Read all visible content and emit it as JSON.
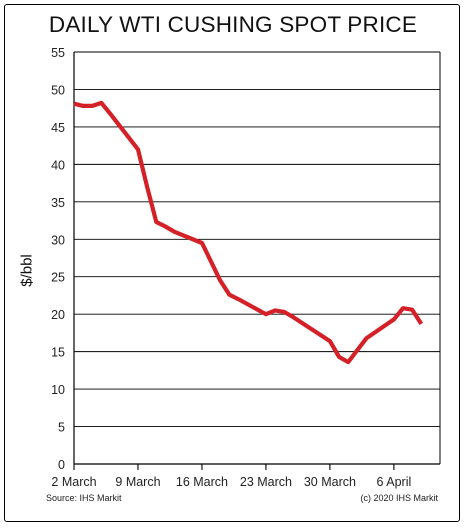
{
  "chart_data": {
    "type": "line",
    "title": "DAILY WTI CUSHING SPOT PRICE",
    "ylabel": "$/bbl",
    "xlabel": "",
    "ylim": [
      0,
      55
    ],
    "y_ticks": [
      0,
      5,
      10,
      15,
      20,
      25,
      30,
      35,
      40,
      45,
      50,
      55
    ],
    "x_ticks": [
      "2 March",
      "9 March",
      "16 March",
      "23 March",
      "30 March",
      "6 April"
    ],
    "grid": "horizontal",
    "line_color": "#d42027",
    "series": [
      {
        "x": [
          "2 March",
          "3 March",
          "4 March",
          "5 March",
          "6 March",
          "9 March",
          "10 March",
          "11 March",
          "12 March",
          "13 March",
          "16 March",
          "17 March",
          "18 March",
          "19 March",
          "20 March",
          "23 March",
          "24 March",
          "25 March",
          "26 March",
          "27 March",
          "30 March",
          "31 March",
          "1 April",
          "2 April",
          "3 April",
          "6 April",
          "7 April",
          "8 April",
          "9 April"
        ],
        "values": [
          48.1,
          47.8,
          47.8,
          48.2,
          46.7,
          42.0,
          37.0,
          32.3,
          31.7,
          31.0,
          29.5,
          27.0,
          24.5,
          22.6,
          22.0,
          20.0,
          20.5,
          20.3,
          19.6,
          18.8,
          16.4,
          14.3,
          13.6,
          15.2,
          16.8,
          19.3,
          20.8,
          20.6,
          18.7
        ]
      }
    ],
    "source": "Source: IHS Markit",
    "copyright": "(c) 2020 IHS Markit"
  }
}
